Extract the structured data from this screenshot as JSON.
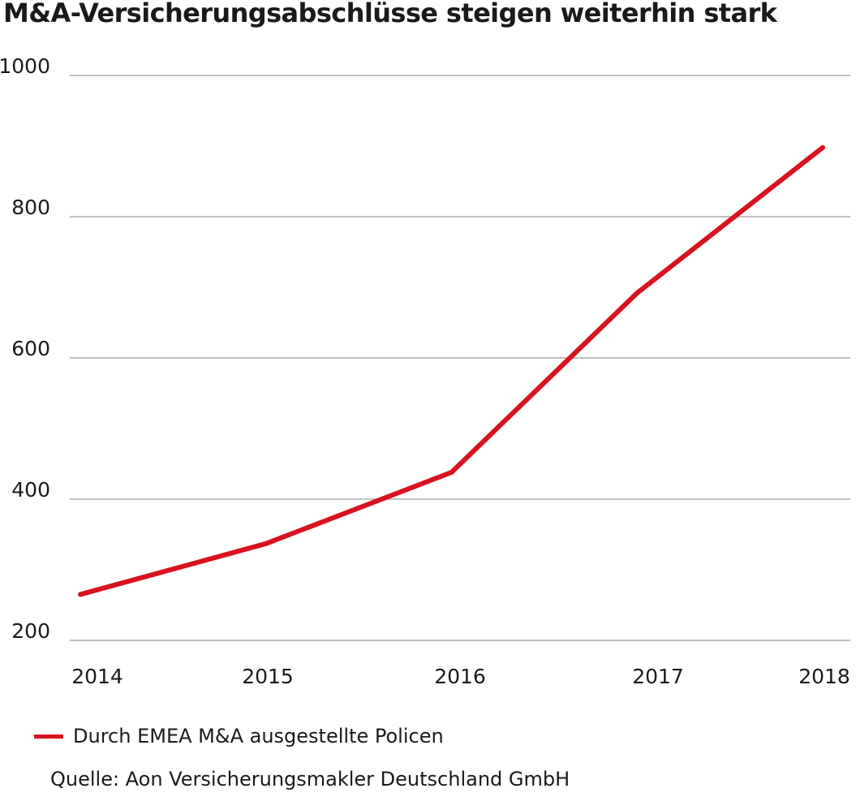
{
  "chart_data": {
    "type": "line",
    "title": "M&A-Versicherungsabschlüsse steigen weiterhin stark",
    "xlabel": "",
    "ylabel": "",
    "categories": [
      "2014",
      "2015",
      "2016",
      "2017",
      "2018"
    ],
    "series": [
      {
        "name": "Durch EMEA M&A ausgestellte Policen",
        "values": [
          265,
          337,
          438,
          692,
          898
        ],
        "color": "#d9121f"
      }
    ],
    "ylim": [
      200,
      1000
    ],
    "yticks": [
      1000,
      800,
      600,
      400,
      200
    ],
    "grid": true,
    "legend_position": "bottom-left"
  },
  "source": "Quelle: Aon Versicherungsmakler Deutschland GmbH"
}
